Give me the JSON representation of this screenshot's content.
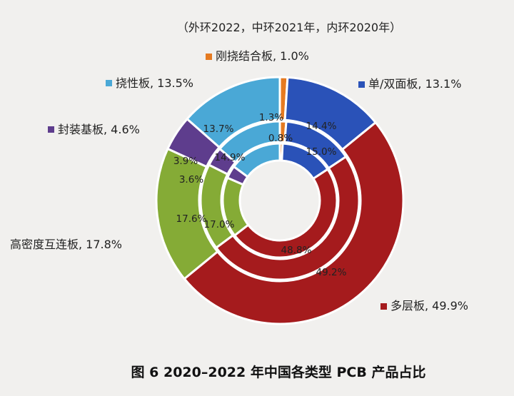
{
  "chart_data": {
    "type": "donut",
    "subtitle": "（外环2022，中环2021年，内环2020年）",
    "caption": "图 6   2020–2022 年中国各类型 PCB 产品占比",
    "categories": [
      "刚挠结合板",
      "单/双面板",
      "多层板",
      "高密度互连板",
      "封装基板",
      "挠性板"
    ],
    "colors": [
      "#e57a21",
      "#2a52b8",
      "#a51b1d",
      "#85ab36",
      "#5e3d8d",
      "#4aa8d6"
    ],
    "legend": [
      {
        "label": "刚挠结合板, 1.0%"
      },
      {
        "label": "单/双面板, 13.1%"
      },
      {
        "label": "多层板, 49.9%"
      },
      {
        "label": "高密度互连板, 17.8%"
      },
      {
        "label": "封装基板, 4.6%"
      },
      {
        "label": "挠性板, 13.5%"
      }
    ],
    "series": [
      {
        "ring": "outer",
        "values": [
          1.0,
          13.1,
          49.9,
          17.8,
          4.6,
          13.5
        ]
      },
      {
        "ring": "middle",
        "values": [
          1.3,
          14.4,
          49.2,
          17.6,
          3.9,
          13.7
        ]
      },
      {
        "ring": "inner",
        "values": [
          0.8,
          15.0,
          48.8,
          17.0,
          3.6,
          14.9
        ]
      }
    ],
    "ring_labels": [
      {
        "text": "1.3%"
      },
      {
        "text": "0.8%"
      },
      {
        "text": "14.4%"
      },
      {
        "text": "15.0%"
      },
      {
        "text": "48.8%"
      },
      {
        "text": "49.2%"
      },
      {
        "text": "17.6%"
      },
      {
        "text": "17.0%"
      },
      {
        "text": "3.9%"
      },
      {
        "text": "3.6%"
      },
      {
        "text": "13.7%"
      },
      {
        "text": "14.9%"
      }
    ]
  }
}
